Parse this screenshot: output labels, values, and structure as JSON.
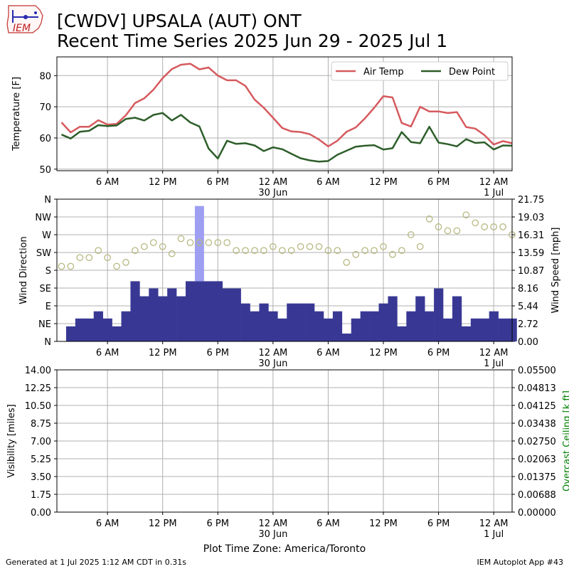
{
  "header": {
    "logo_text": "IEM",
    "title_line1": "[CWDV] UPSALA (AUT)  ONT",
    "title_line2": "Recent Time Series 2025 Jun 29 - 2025 Jul 1"
  },
  "footer": {
    "generated": "Generated at 1 Jul 2025 1:12 AM CDT in 0.31s",
    "app": "IEM Autoplot App #43",
    "timezone": "Plot Time Zone: America/Toronto"
  },
  "colors": {
    "air_temp": "#d65a5e",
    "dew_point": "#2e5e2a",
    "wind_bar": "#383894",
    "gust_bar": "#9e9ef2",
    "wind_dir_marker": "#b8b882",
    "ceiling_axis": "#008000",
    "grid": "#b0b0b0"
  },
  "chart_data": [
    {
      "type": "line",
      "ylabel": "Temperature [F]",
      "ylim": [
        49.5,
        86
      ],
      "yticks": [
        50,
        60,
        70,
        80
      ],
      "x_hours_range": [
        0,
        49
      ],
      "x_ticks": [
        {
          "hour": 5,
          "label": "6 AM",
          "sub": ""
        },
        {
          "hour": 11,
          "label": "12 PM",
          "sub": ""
        },
        {
          "hour": 17,
          "label": "6 PM",
          "sub": ""
        },
        {
          "hour": 23,
          "label": "12 AM",
          "sub": "30 Jun"
        },
        {
          "hour": 29,
          "label": "6 AM",
          "sub": ""
        },
        {
          "hour": 35,
          "label": "12 PM",
          "sub": ""
        },
        {
          "hour": 41,
          "label": "6 PM",
          "sub": ""
        },
        {
          "hour": 47,
          "label": "12 AM",
          "sub": "1 Jul"
        }
      ],
      "grid": true,
      "legend": "top-right",
      "series": [
        {
          "name": "Air Temp",
          "x": [
            0,
            1,
            2,
            3,
            4,
            5,
            6,
            7,
            8,
            9,
            10,
            11,
            12,
            13,
            14,
            15,
            16,
            17,
            18,
            19,
            20,
            21,
            22,
            23,
            24,
            25,
            26,
            27,
            28,
            29,
            30,
            31,
            32,
            33,
            34,
            35,
            36,
            37,
            38,
            39,
            40,
            41,
            42,
            43,
            44,
            45,
            46,
            47,
            48,
            49
          ],
          "values": [
            65,
            61.8,
            63.6,
            63.6,
            65.7,
            64.3,
            64.5,
            67.3,
            71.2,
            72.7,
            75.5,
            79.2,
            82.1,
            83.5,
            83.8,
            82.0,
            82.6,
            80.0,
            78.5,
            78.5,
            76.7,
            72.3,
            69.7,
            66.5,
            63.2,
            62.1,
            61.9,
            61.2,
            59.5,
            57.3,
            59.1,
            62.0,
            63.4,
            66.3,
            69.7,
            73.4,
            73.0,
            64.8,
            63.7,
            70.0,
            68.5,
            68.5,
            68.0,
            68.3,
            63.5,
            63.0,
            60.9,
            57.9,
            59.0,
            58.3
          ]
        },
        {
          "name": "Dew Point",
          "x": [
            0,
            1,
            2,
            3,
            4,
            5,
            6,
            7,
            8,
            9,
            10,
            11,
            12,
            13,
            14,
            15,
            16,
            17,
            18,
            19,
            20,
            21,
            22,
            23,
            24,
            25,
            26,
            27,
            28,
            29,
            30,
            31,
            32,
            33,
            34,
            35,
            36,
            37,
            38,
            39,
            40,
            41,
            42,
            43,
            44,
            45,
            46,
            47,
            48,
            49
          ],
          "values": [
            61.1,
            59.8,
            62.0,
            62.3,
            64.1,
            63.8,
            64.0,
            66.1,
            66.5,
            65.6,
            67.4,
            68.0,
            65.6,
            67.4,
            65.0,
            63.7,
            56.6,
            53.4,
            59.1,
            58.1,
            58.3,
            57.6,
            55.8,
            57.0,
            56.4,
            54.9,
            53.5,
            52.8,
            52.4,
            52.6,
            54.6,
            55.9,
            57.2,
            57.5,
            57.7,
            56.3,
            56.7,
            61.9,
            58.7,
            58.3,
            63.6,
            58.5,
            58.0,
            57.3,
            59.6,
            58.4,
            58.6,
            56.3,
            57.6,
            57.5
          ]
        }
      ]
    },
    {
      "type": "bar",
      "ylabel": "Wind Direction",
      "y2label": "Wind Speed [mph]",
      "dir_ticks": [
        "N",
        "NE",
        "E",
        "SE",
        "S",
        "SW",
        "W",
        "NW",
        "N"
      ],
      "speed_ticks": [
        "0.00",
        "2.72",
        "5.44",
        "8.16",
        "10.87",
        "13.59",
        "16.31",
        "19.03",
        "21.75"
      ],
      "speed_lim": [
        0,
        21.75
      ],
      "grid": true,
      "series": [
        {
          "name": "wind_speed",
          "x": [
            0,
            1,
            2,
            3,
            4,
            5,
            6,
            7,
            8,
            9,
            10,
            11,
            12,
            13,
            14,
            15,
            16,
            17,
            18,
            19,
            20,
            21,
            22,
            23,
            24,
            25,
            26,
            27,
            28,
            29,
            30,
            31,
            32,
            33,
            34,
            35,
            36,
            37,
            38,
            39,
            40,
            41,
            42,
            43,
            44,
            45,
            46,
            47,
            48,
            49
          ],
          "values": [
            0,
            2.3,
            3.5,
            3.5,
            4.6,
            3.5,
            2.3,
            4.6,
            9.2,
            6.9,
            8.1,
            6.9,
            8.1,
            6.9,
            9.2,
            9.2,
            9.2,
            9.2,
            8.1,
            8.1,
            5.8,
            4.6,
            5.8,
            4.6,
            3.5,
            5.8,
            5.8,
            5.8,
            4.6,
            3.5,
            4.6,
            1.2,
            3.5,
            4.6,
            4.6,
            5.8,
            6.9,
            2.3,
            4.6,
            6.9,
            4.6,
            8.1,
            3.5,
            6.9,
            2.3,
            3.5,
            3.5,
            4.6,
            3.5,
            3.5
          ]
        },
        {
          "name": "wind_gust",
          "x": [
            15
          ],
          "values": [
            20.7
          ]
        },
        {
          "name": "wind_direction_deg",
          "x": [
            0,
            1,
            2,
            3,
            4,
            5,
            6,
            7,
            8,
            9,
            10,
            11,
            12,
            13,
            14,
            15,
            16,
            17,
            18,
            19,
            20,
            21,
            22,
            23,
            24,
            25,
            26,
            27,
            28,
            29,
            30,
            31,
            32,
            33,
            34,
            35,
            36,
            37,
            38,
            39,
            40,
            41,
            42,
            43,
            44,
            45,
            46,
            47,
            48,
            49
          ],
          "values": [
            190,
            190,
            212,
            212,
            230,
            212,
            190,
            200,
            230,
            240,
            250,
            240,
            222,
            260,
            250,
            250,
            250,
            250,
            250,
            230,
            230,
            230,
            230,
            240,
            230,
            230,
            240,
            240,
            240,
            230,
            230,
            200,
            220,
            230,
            230,
            240,
            220,
            230,
            270,
            240,
            310,
            290,
            280,
            280,
            320,
            300,
            290,
            290,
            290,
            270
          ]
        }
      ]
    },
    {
      "type": "line",
      "ylabel": "Visibility [miles]",
      "y2label": "Overcast Ceiling [k ft]",
      "vis_ticks": [
        "0.00",
        "1.75",
        "3.50",
        "5.25",
        "7.00",
        "8.75",
        "10.50",
        "12.25",
        "14.00"
      ],
      "ceil_ticks": [
        "0.00000",
        "0.00688",
        "0.01375",
        "0.02063",
        "0.02750",
        "0.03438",
        "0.04125",
        "0.04813",
        "0.05500"
      ],
      "ylim": [
        0,
        14
      ],
      "y2lim": [
        0,
        0.055
      ],
      "grid": true,
      "series": []
    }
  ]
}
